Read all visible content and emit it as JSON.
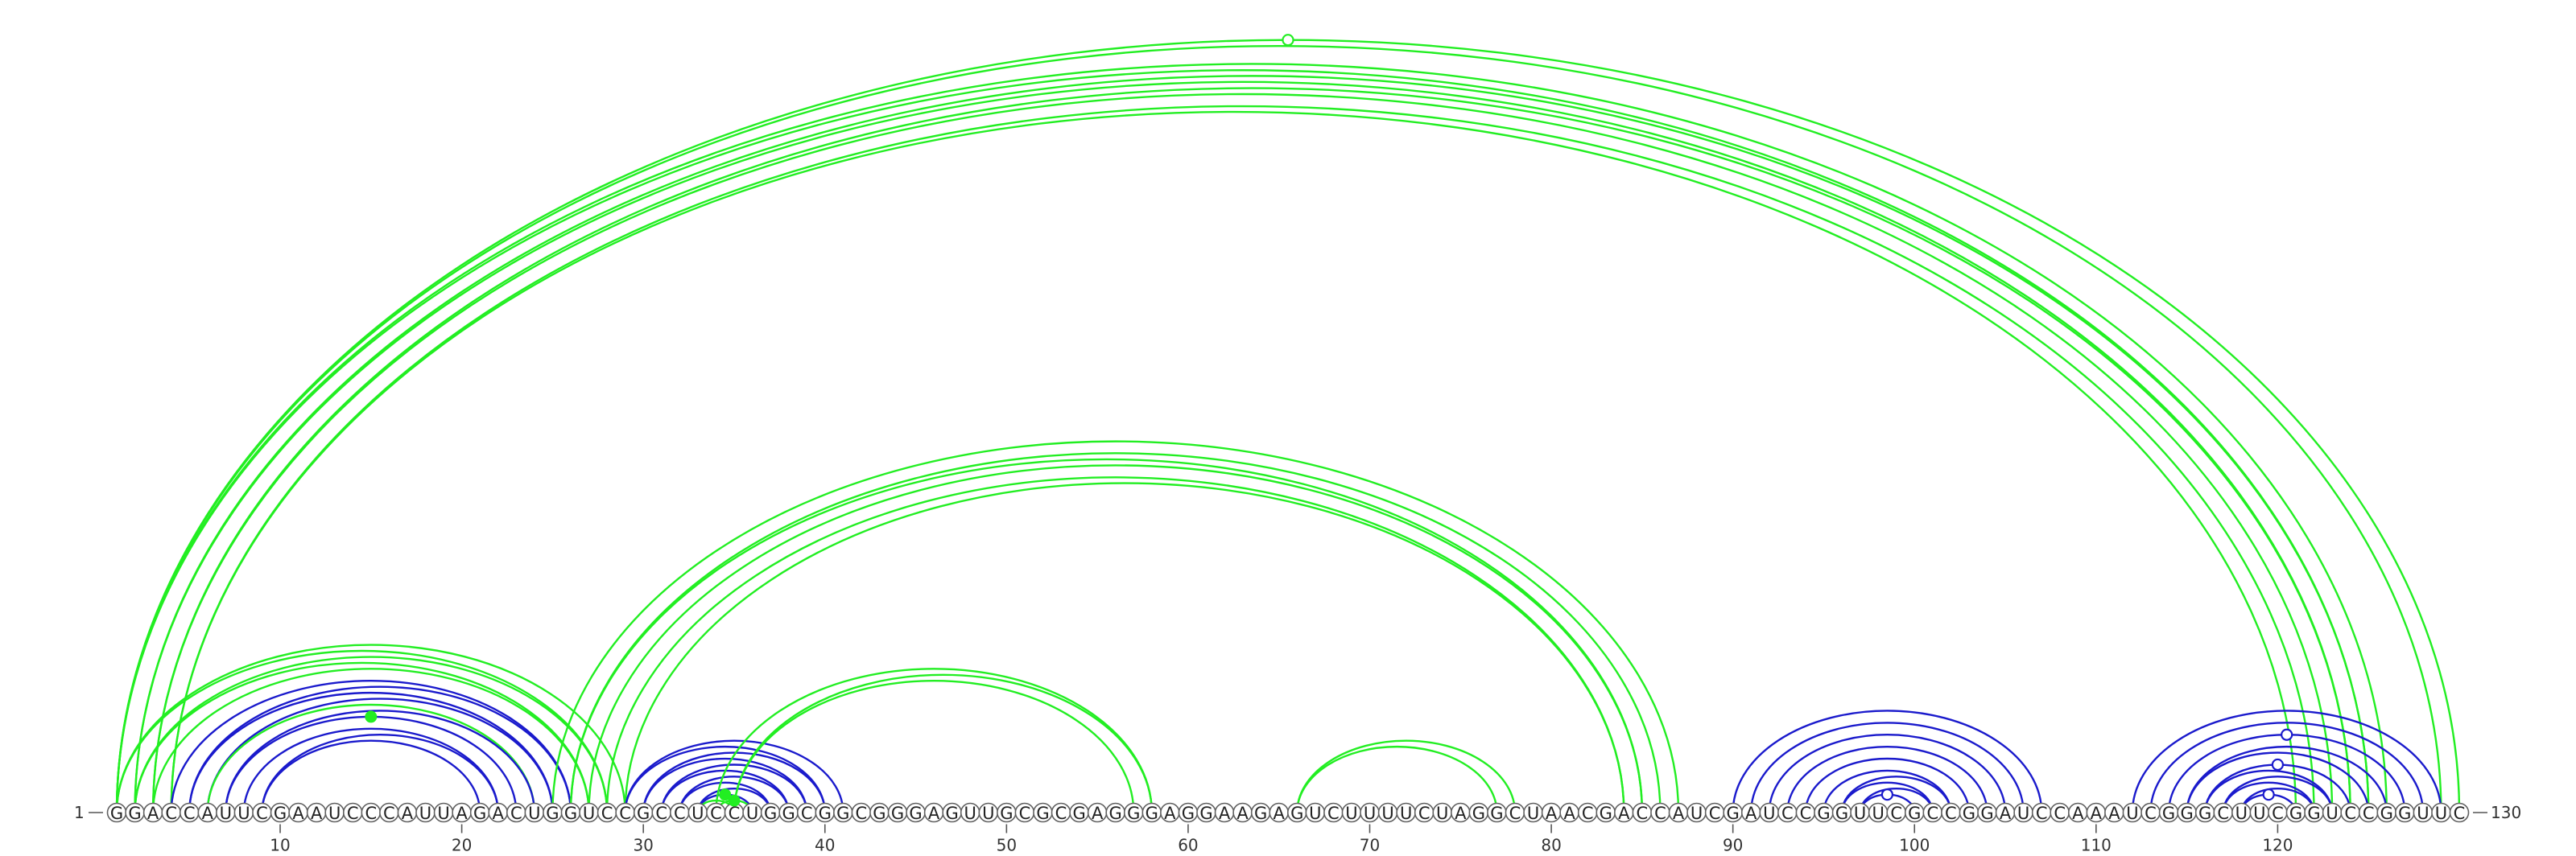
{
  "sequence": "GGACCAUUCGAAUCCCAUUAGACUGGUCCGCCUCCUGGCGGCGGGAGUUGCGCGAGGGAGGAAGAGUCUUUUCUAGGCUAACGACCAUCGAUCCGGUUCGCCGGAUCCAAAUCGGGCUUCGGUCCGGUUC",
  "start_label": "1",
  "end_label": "130",
  "ticks": [
    10,
    20,
    30,
    40,
    50,
    60,
    70,
    80,
    90,
    100,
    110,
    120
  ],
  "colors": {
    "green": "#22ee22",
    "blue": "#1a1acc",
    "backbone": "#555555"
  },
  "arcs": [
    {
      "i": 1,
      "j": 130,
      "color": "green"
    },
    {
      "i": 1,
      "j": 129,
      "color": "green"
    },
    {
      "i": 1,
      "j": 126,
      "color": "green"
    },
    {
      "i": 1,
      "j": 125,
      "color": "green"
    },
    {
      "i": 2,
      "j": 125,
      "color": "green"
    },
    {
      "i": 2,
      "j": 124,
      "color": "green"
    },
    {
      "i": 3,
      "j": 124,
      "color": "green"
    },
    {
      "i": 3,
      "j": 123,
      "color": "green"
    },
    {
      "i": 4,
      "j": 122,
      "color": "green"
    },
    {
      "i": 4,
      "j": 121,
      "color": "green"
    },
    {
      "i": 1,
      "j": 29,
      "color": "green"
    },
    {
      "i": 1,
      "j": 28,
      "color": "green"
    },
    {
      "i": 2,
      "j": 28,
      "color": "green"
    },
    {
      "i": 2,
      "j": 27,
      "color": "green"
    },
    {
      "i": 3,
      "j": 27,
      "color": "green"
    },
    {
      "i": 4,
      "j": 26,
      "color": "blue"
    },
    {
      "i": 5,
      "j": 26,
      "color": "blue"
    },
    {
      "i": 5,
      "j": 25,
      "color": "blue"
    },
    {
      "i": 6,
      "j": 25,
      "color": "blue"
    },
    {
      "i": 6,
      "j": 24,
      "color": "green"
    },
    {
      "i": 7,
      "j": 24,
      "color": "blue"
    },
    {
      "i": 7,
      "j": 23,
      "color": "blue"
    },
    {
      "i": 8,
      "j": 22,
      "color": "blue"
    },
    {
      "i": 9,
      "j": 22,
      "color": "blue"
    },
    {
      "i": 9,
      "j": 21,
      "color": "blue"
    },
    {
      "i": 25,
      "j": 87,
      "color": "green"
    },
    {
      "i": 26,
      "j": 86,
      "color": "green"
    },
    {
      "i": 26,
      "j": 85,
      "color": "green"
    },
    {
      "i": 27,
      "j": 85,
      "color": "green"
    },
    {
      "i": 28,
      "j": 84,
      "color": "green"
    },
    {
      "i": 29,
      "j": 84,
      "color": "green"
    },
    {
      "i": 29,
      "j": 41,
      "color": "blue"
    },
    {
      "i": 29,
      "j": 40,
      "color": "blue"
    },
    {
      "i": 30,
      "j": 40,
      "color": "blue"
    },
    {
      "i": 30,
      "j": 39,
      "color": "blue"
    },
    {
      "i": 31,
      "j": 39,
      "color": "blue"
    },
    {
      "i": 31,
      "j": 38,
      "color": "blue"
    },
    {
      "i": 32,
      "j": 38,
      "color": "blue"
    },
    {
      "i": 32,
      "j": 37,
      "color": "blue"
    },
    {
      "i": 33,
      "j": 37,
      "color": "blue"
    },
    {
      "i": 33,
      "j": 36,
      "color": "blue"
    },
    {
      "i": 33,
      "j": 35,
      "color": "green"
    },
    {
      "i": 34,
      "j": 36,
      "color": "green"
    },
    {
      "i": 34,
      "j": 58,
      "color": "green"
    },
    {
      "i": 35,
      "j": 58,
      "color": "green"
    },
    {
      "i": 35,
      "j": 57,
      "color": "green"
    },
    {
      "i": 66,
      "j": 78,
      "color": "green"
    },
    {
      "i": 66,
      "j": 77,
      "color": "green"
    },
    {
      "i": 90,
      "j": 107,
      "color": "blue"
    },
    {
      "i": 91,
      "j": 106,
      "color": "blue"
    },
    {
      "i": 92,
      "j": 105,
      "color": "blue"
    },
    {
      "i": 93,
      "j": 104,
      "color": "blue"
    },
    {
      "i": 94,
      "j": 103,
      "color": "blue"
    },
    {
      "i": 95,
      "j": 102,
      "color": "blue"
    },
    {
      "i": 96,
      "j": 102,
      "color": "blue"
    },
    {
      "i": 96,
      "j": 101,
      "color": "blue"
    },
    {
      "i": 97,
      "j": 101,
      "color": "blue"
    },
    {
      "i": 97,
      "j": 100,
      "color": "blue"
    },
    {
      "i": 112,
      "j": 129,
      "color": "blue"
    },
    {
      "i": 113,
      "j": 128,
      "color": "blue"
    },
    {
      "i": 114,
      "j": 127,
      "color": "blue"
    },
    {
      "i": 115,
      "j": 126,
      "color": "blue"
    },
    {
      "i": 115,
      "j": 125,
      "color": "blue"
    },
    {
      "i": 116,
      "j": 124,
      "color": "blue"
    },
    {
      "i": 116,
      "j": 123,
      "color": "blue"
    },
    {
      "i": 117,
      "j": 123,
      "color": "blue"
    },
    {
      "i": 117,
      "j": 122,
      "color": "blue"
    },
    {
      "i": 118,
      "j": 122,
      "color": "blue"
    },
    {
      "i": 118,
      "j": 121,
      "color": "blue"
    }
  ],
  "markers": [
    {
      "i": 1,
      "j": 130,
      "color": "green",
      "style": "open"
    },
    {
      "i": 7,
      "j": 23,
      "color": "green",
      "style": "filled"
    },
    {
      "i": 33,
      "j": 36,
      "color": "green",
      "style": "filled"
    },
    {
      "i": 34,
      "j": 36,
      "color": "green",
      "style": "filled"
    },
    {
      "i": 97,
      "j": 100,
      "color": "blue",
      "style": "open"
    },
    {
      "i": 114,
      "j": 127,
      "color": "blue",
      "style": "open"
    },
    {
      "i": 116,
      "j": 124,
      "color": "blue",
      "style": "open"
    },
    {
      "i": 118,
      "j": 121,
      "color": "blue",
      "style": "open"
    }
  ]
}
